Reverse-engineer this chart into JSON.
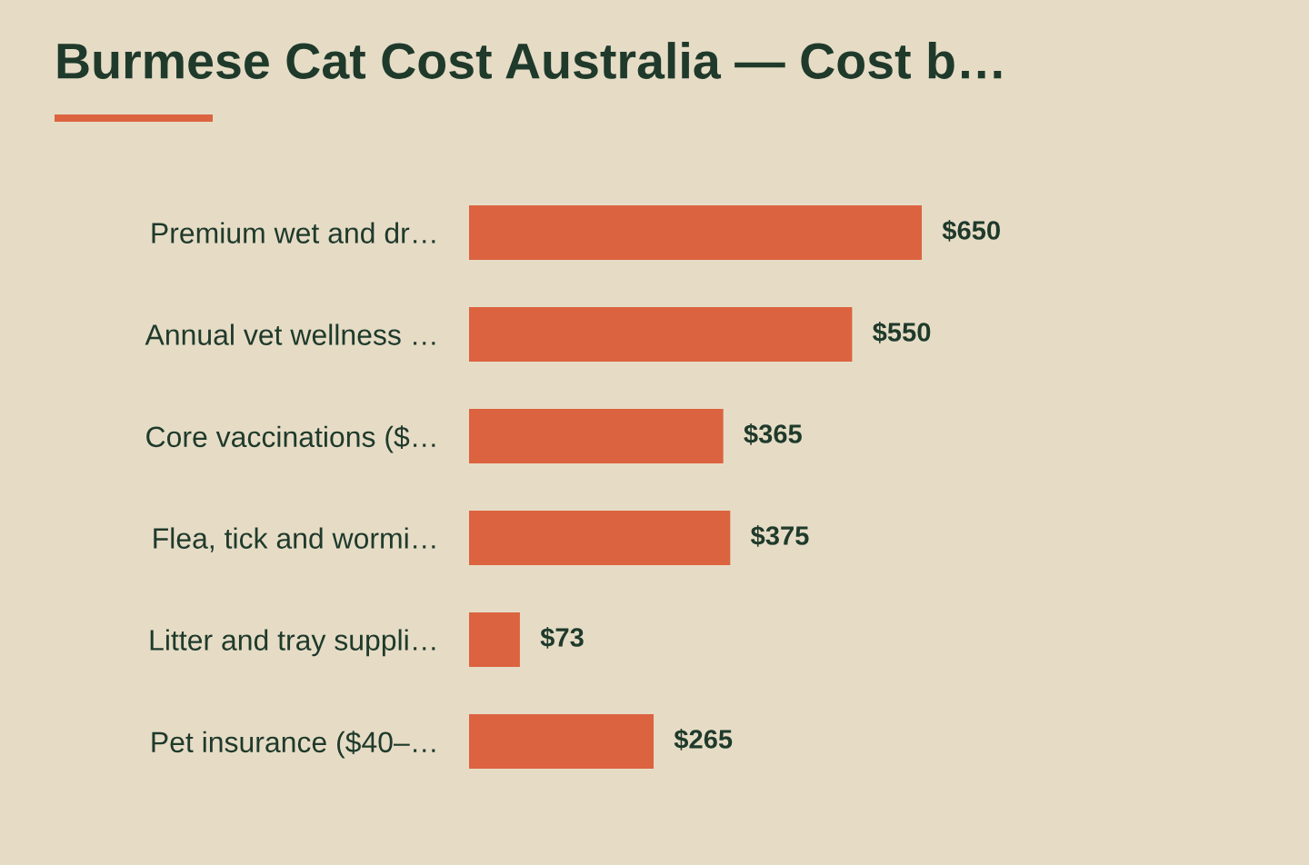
{
  "chart_data": {
    "type": "bar",
    "orientation": "horizontal",
    "title": "Burmese Cat Cost Australia — Cost b…",
    "categories": [
      "Premium wet and dr…",
      "Annual vet wellness …",
      "Core vaccinations ($…",
      "Flea, tick and wormi…",
      "Litter and tray suppli…",
      "Pet insurance ($40–…"
    ],
    "values": [
      650,
      550,
      365,
      375,
      73,
      265
    ],
    "value_labels": [
      "$650",
      "$550",
      "$365",
      "$375",
      "$73",
      "$265"
    ],
    "color": "#dc6340",
    "tick_labels": "y",
    "grid": false,
    "legend": false
  }
}
